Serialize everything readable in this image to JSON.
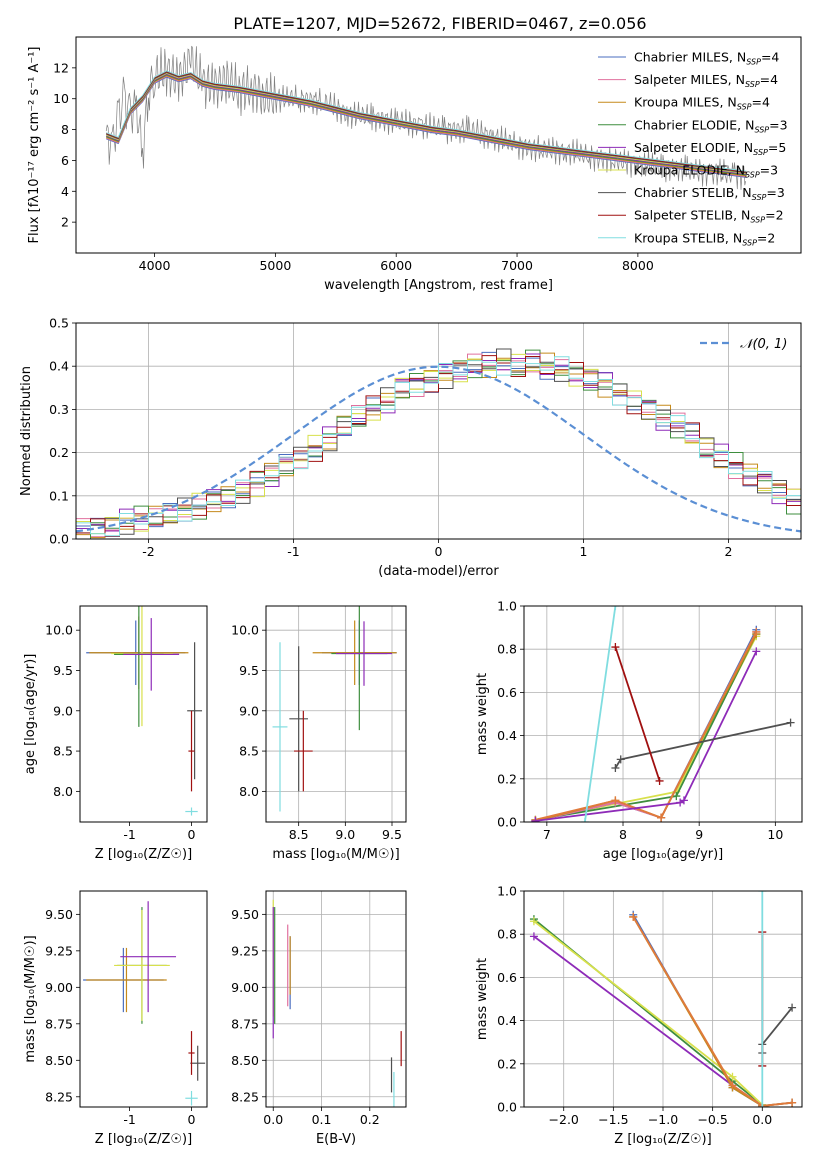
{
  "figure": {
    "title": "PLATE=1207, MJD=52672, FIBERID=0467, z=0.056"
  },
  "chart_data": [
    {
      "id": "spectrum",
      "type": "line",
      "xlabel": "wavelength [Angstrom, rest frame]",
      "ylabel": "Flux [fλ10⁻¹⁷ erg cm⁻² s⁻¹ A⁻¹]",
      "xlim": [
        3350,
        9350
      ],
      "ylim": [
        0,
        14
      ],
      "xticks": [
        4000,
        5000,
        6000,
        7000,
        8000
      ],
      "yticks": [
        2,
        4,
        6,
        8,
        10,
        12
      ],
      "grid": false,
      "legend_position": "top-right",
      "data_color": "#808080",
      "data_x": [
        3600,
        3650,
        3700,
        3750,
        3800,
        3850,
        3900,
        3950,
        4000,
        4100,
        4200,
        4300,
        4400,
        4500,
        4600,
        4700,
        4800,
        4900,
        5000,
        5200,
        5400,
        5600,
        5800,
        6000,
        6200,
        6400,
        6600,
        6800,
        7000,
        7200,
        7400,
        7600,
        7800,
        8000,
        8200,
        8400,
        8600,
        8800,
        8900
      ],
      "data_y": [
        7.5,
        7.0,
        8.8,
        10.0,
        9.0,
        9.5,
        6.5,
        10.5,
        11.5,
        11.8,
        11.2,
        12.5,
        11.0,
        10.8,
        11.2,
        10.5,
        10.7,
        10.2,
        10.0,
        10.0,
        9.8,
        9.0,
        8.8,
        8.5,
        8.3,
        8.0,
        8.0,
        7.5,
        7.0,
        6.7,
        6.6,
        6.3,
        6.0,
        5.8,
        5.6,
        5.4,
        5.2,
        5.1,
        5.0
      ],
      "model_x": [
        3600,
        3700,
        3800,
        3900,
        4000,
        4100,
        4200,
        4300,
        4400,
        4500,
        4700,
        4900,
        5100,
        5300,
        5500,
        5700,
        5900,
        6100,
        6300,
        6500,
        6700,
        6900,
        7100,
        7300,
        7500,
        7700,
        7900,
        8100,
        8300,
        8500,
        8700,
        8900
      ],
      "model_y": [
        7.6,
        7.3,
        9.2,
        10.0,
        11.2,
        11.6,
        11.3,
        11.5,
        11.0,
        10.8,
        10.6,
        10.3,
        10.0,
        9.7,
        9.3,
        8.9,
        8.6,
        8.3,
        8.0,
        7.8,
        7.5,
        7.2,
        6.9,
        6.7,
        6.5,
        6.3,
        6.1,
        5.9,
        5.7,
        5.5,
        5.3,
        5.1
      ],
      "series": [
        {
          "name": "Chabrier MILES, N",
          "sub": "SSP",
          "suffix": "=4",
          "color": "#4a6ebf"
        },
        {
          "name": "Salpeter MILES, N",
          "sub": "SSP",
          "suffix": "=4",
          "color": "#e1709e"
        },
        {
          "name": "Kroupa MILES, N",
          "sub": "SSP",
          "suffix": "=4",
          "color": "#c58a1c"
        },
        {
          "name": "Chabrier ELODIE, N",
          "sub": "SSP",
          "suffix": "=3",
          "color": "#3e8e3e"
        },
        {
          "name": "Salpeter ELODIE, N",
          "sub": "SSP",
          "suffix": "=5",
          "color": "#8e2bb8"
        },
        {
          "name": "Kroupa ELODIE, N",
          "sub": "SSP",
          "suffix": "=3",
          "color": "#d8e04c"
        },
        {
          "name": "Chabrier STELIB, N",
          "sub": "SSP",
          "suffix": "=3",
          "color": "#505050"
        },
        {
          "name": "Salpeter STELIB, N",
          "sub": "SSP",
          "suffix": "=2",
          "color": "#a01010"
        },
        {
          "name": "Kroupa STELIB, N",
          "sub": "SSP",
          "suffix": "=2",
          "color": "#80dde0"
        }
      ]
    },
    {
      "id": "residuals",
      "type": "line",
      "xlabel": "(data-model)/error",
      "ylabel": "Normed distribution",
      "xlim": [
        -2.5,
        2.5
      ],
      "ylim": [
        0,
        0.5
      ],
      "xticks": [
        -2,
        -1,
        0,
        1,
        2
      ],
      "yticks": [
        0.0,
        0.1,
        0.2,
        0.3,
        0.4,
        0.5
      ],
      "grid": true,
      "legend_position": "top-right",
      "gaussian_label": "𝒩(0, 1)",
      "gaussian_color": "#5b8fd4",
      "hist_bin_width": 0.1,
      "hist_x_start": -2.5,
      "hist_base": [
        0.02,
        0.025,
        0.03,
        0.04,
        0.045,
        0.05,
        0.055,
        0.065,
        0.075,
        0.09,
        0.1,
        0.11,
        0.13,
        0.15,
        0.17,
        0.19,
        0.21,
        0.23,
        0.26,
        0.28,
        0.3,
        0.32,
        0.35,
        0.36,
        0.37,
        0.38,
        0.39,
        0.4,
        0.4,
        0.41,
        0.4,
        0.41,
        0.4,
        0.39,
        0.38,
        0.37,
        0.36,
        0.34,
        0.32,
        0.3,
        0.28,
        0.26,
        0.24,
        0.21,
        0.19,
        0.17,
        0.15,
        0.13,
        0.11,
        0.09,
        0.08
      ]
    },
    {
      "id": "age-vs-Z",
      "type": "scatter",
      "xlabel": "Z [log₁₀(Z/Z☉)]",
      "ylabel": "age  [log₁₀(age/yr)]",
      "xlim": [
        -1.8,
        0.25
      ],
      "ylim": [
        7.62,
        10.3
      ],
      "xticks": [
        -1,
        0
      ],
      "yticks": [
        8.0,
        8.5,
        9.0,
        9.5,
        10.0
      ],
      "grid": false,
      "points": [
        {
          "x": -0.9,
          "y": 9.72,
          "xerr": 0.8,
          "yerr": 0.4,
          "color": "#4a6ebf"
        },
        {
          "x": -0.85,
          "y": 9.72,
          "xerr": 0.8,
          "yerr": 0.45,
          "color": "#c58a1c"
        },
        {
          "x": -0.8,
          "y": 9.71,
          "xerr": 0.5,
          "yerr": 0.9,
          "color": "#d8e04c"
        },
        {
          "x": -0.85,
          "y": 9.7,
          "xerr": 0.4,
          "yerr": 0.9,
          "color": "#3e8e3e"
        },
        {
          "x": -0.65,
          "y": 9.7,
          "xerr": 0.45,
          "yerr": 0.45,
          "color": "#8e2bb8"
        },
        {
          "x": 0.05,
          "y": 9.0,
          "xerr": 0.12,
          "yerr": 0.85,
          "color": "#505050"
        },
        {
          "x": 0.0,
          "y": 8.5,
          "xerr": 0.05,
          "yerr": 0.5,
          "color": "#a01010"
        },
        {
          "x": 0.0,
          "y": 7.75,
          "xerr": 0.1,
          "yerr": 0.05,
          "color": "#80dde0"
        }
      ]
    },
    {
      "id": "age-vs-mass",
      "type": "scatter",
      "xlabel": "mass [log₁₀(M/M☉)]",
      "ylabel": "",
      "xlim": [
        8.15,
        9.65
      ],
      "ylim": [
        7.62,
        10.3
      ],
      "xticks": [
        8.5,
        9.0,
        9.5
      ],
      "yticks": [
        8.0,
        8.5,
        9.0,
        9.5,
        10.0
      ],
      "grid": true,
      "points": [
        {
          "x": 9.15,
          "y": 9.72,
          "xerr": 0.4,
          "yerr": 0.4,
          "color": "#4a6ebf"
        },
        {
          "x": 9.1,
          "y": 9.72,
          "xerr": 0.45,
          "yerr": 0.4,
          "color": "#c58a1c"
        },
        {
          "x": 9.15,
          "y": 9.71,
          "xerr": 0.3,
          "yerr": 0.95,
          "color": "#3e8e3e"
        },
        {
          "x": 9.2,
          "y": 9.71,
          "xerr": 0.3,
          "yerr": 0.4,
          "color": "#8e2bb8"
        },
        {
          "x": 8.5,
          "y": 8.9,
          "xerr": 0.1,
          "yerr": 0.9,
          "color": "#505050"
        },
        {
          "x": 8.55,
          "y": 8.5,
          "xerr": 0.1,
          "yerr": 0.5,
          "color": "#a01010"
        },
        {
          "x": 8.3,
          "y": 8.8,
          "xerr": 0.08,
          "yerr": 1.05,
          "color": "#80dde0"
        }
      ]
    },
    {
      "id": "weight-vs-age",
      "type": "line",
      "xlabel": "age  [log₁₀(age/yr)]",
      "ylabel": "mass weight",
      "xlim": [
        6.7,
        10.35
      ],
      "ylim": [
        0,
        1
      ],
      "xticks": [
        7,
        8,
        9,
        10
      ],
      "yticks": [
        0.0,
        0.2,
        0.4,
        0.6,
        0.8,
        1.0
      ],
      "grid": true,
      "series": [
        {
          "color": "#d8e04c",
          "x": [
            6.85,
            8.7,
            9.75
          ],
          "y": [
            0.01,
            0.14,
            0.86
          ]
        },
        {
          "color": "#3e8e3e",
          "x": [
            6.85,
            8.7,
            9.75
          ],
          "y": [
            0.01,
            0.12,
            0.87
          ]
        },
        {
          "color": "#4a6ebf",
          "x": [
            6.85,
            7.9,
            8.5,
            9.75
          ],
          "y": [
            0.005,
            0.09,
            0.02,
            0.89
          ]
        },
        {
          "color": "#e1709e",
          "x": [
            6.85,
            7.9,
            8.5,
            9.75
          ],
          "y": [
            0.005,
            0.09,
            0.02,
            0.88
          ]
        },
        {
          "color": "#c58a1c",
          "x": [
            6.85,
            7.9,
            8.5,
            9.75
          ],
          "y": [
            0.005,
            0.1,
            0.02,
            0.87
          ]
        },
        {
          "color": "#e07a3c",
          "x": [
            6.85,
            7.9,
            8.5,
            9.75
          ],
          "y": [
            0.01,
            0.1,
            0.02,
            0.88
          ]
        },
        {
          "color": "#8e2bb8",
          "x": [
            6.85,
            8.75,
            8.8,
            9.75
          ],
          "y": [
            0.005,
            0.09,
            0.1,
            0.79
          ]
        },
        {
          "color": "#505050",
          "x": [
            7.9,
            7.97,
            10.2
          ],
          "y": [
            0.25,
            0.29,
            0.46
          ]
        },
        {
          "color": "#a01010",
          "x": [
            7.9,
            8.48
          ],
          "y": [
            0.81,
            0.19
          ]
        },
        {
          "color": "#80dde0",
          "x": [
            7.5,
            7.9
          ],
          "y": [
            0.0,
            1.0
          ]
        }
      ]
    },
    {
      "id": "mass-vs-Z",
      "type": "scatter",
      "xlabel": "Z [log₁₀(Z/Z☉)]",
      "ylabel": "mass [log₁₀(M/M☉)]",
      "xlim": [
        -1.8,
        0.25
      ],
      "ylim": [
        8.18,
        9.66
      ],
      "xticks": [
        -1,
        0
      ],
      "yticks": [
        8.25,
        8.5,
        8.75,
        9.0,
        9.25,
        9.5
      ],
      "grid": false,
      "points": [
        {
          "x": -1.1,
          "y": 9.05,
          "xerr": 0.65,
          "yerr": 0.22,
          "color": "#4a6ebf"
        },
        {
          "x": -1.05,
          "y": 9.05,
          "xerr": 0.65,
          "yerr": 0.22,
          "color": "#c58a1c"
        },
        {
          "x": -0.8,
          "y": 9.15,
          "xerr": 0.4,
          "yerr": 0.4,
          "color": "#3e8e3e"
        },
        {
          "x": -0.8,
          "y": 9.15,
          "xerr": 0.45,
          "yerr": 0.38,
          "color": "#d8e04c"
        },
        {
          "x": -0.7,
          "y": 9.21,
          "xerr": 0.45,
          "yerr": 0.38,
          "color": "#8e2bb8"
        },
        {
          "x": 0.1,
          "y": 8.48,
          "xerr": 0.12,
          "yerr": 0.12,
          "color": "#505050"
        },
        {
          "x": 0.0,
          "y": 8.55,
          "xerr": 0.05,
          "yerr": 0.15,
          "color": "#a01010"
        },
        {
          "x": 0.0,
          "y": 8.24,
          "xerr": 0.1,
          "yerr": 0.05,
          "color": "#80dde0"
        }
      ]
    },
    {
      "id": "mass-vs-EBV",
      "type": "scatter",
      "xlabel": "E(B-V)",
      "ylabel": "",
      "xlim": [
        -0.015,
        0.275
      ],
      "ylim": [
        8.18,
        9.66
      ],
      "xticks": [
        0.0,
        0.1,
        0.2
      ],
      "yticks": [
        8.25,
        8.5,
        8.75,
        9.0,
        9.25,
        9.5
      ],
      "grid": true,
      "points": [
        {
          "x": 0.0,
          "y": 9.2,
          "xerr": 0.0,
          "yerr": 0.4,
          "color": "#d8e04c"
        },
        {
          "x": 0.0,
          "y": 9.1,
          "xerr": 0.0,
          "yerr": 0.45,
          "color": "#8e2bb8"
        },
        {
          "x": 0.003,
          "y": 9.15,
          "xerr": 0.0,
          "yerr": 0.4,
          "color": "#3e8e3e"
        },
        {
          "x": 0.03,
          "y": 9.15,
          "xerr": 0.0,
          "yerr": 0.28,
          "color": "#e1709e"
        },
        {
          "x": 0.035,
          "y": 9.1,
          "xerr": 0.0,
          "yerr": 0.25,
          "color": "#4a6ebf"
        },
        {
          "x": 0.035,
          "y": 9.15,
          "xerr": 0.0,
          "yerr": 0.2,
          "color": "#c58a1c"
        },
        {
          "x": 0.245,
          "y": 8.4,
          "xerr": 0.0,
          "yerr": 0.12,
          "color": "#505050"
        },
        {
          "x": 0.265,
          "y": 8.58,
          "xerr": 0.0,
          "yerr": 0.12,
          "color": "#a01010"
        },
        {
          "x": 0.25,
          "y": 8.3,
          "xerr": 0.0,
          "yerr": 0.12,
          "color": "#80dde0"
        }
      ]
    },
    {
      "id": "weight-vs-Z",
      "type": "line",
      "xlabel": "Z [log₁₀(Z/Z☉)]",
      "ylabel": "mass weight",
      "xlim": [
        -2.4,
        0.4
      ],
      "ylim": [
        0,
        1
      ],
      "xticks": [
        -2.0,
        -1.5,
        -1.0,
        -0.5,
        0.0
      ],
      "yticks": [
        0.0,
        0.2,
        0.4,
        0.6,
        0.8,
        1.0
      ],
      "grid": true,
      "series": [
        {
          "color": "#3e8e3e",
          "x": [
            -2.3,
            -0.3,
            0.0
          ],
          "y": [
            0.87,
            0.12,
            0.01
          ]
        },
        {
          "color": "#d8e04c",
          "x": [
            -2.3,
            -0.3,
            0.0
          ],
          "y": [
            0.86,
            0.14,
            0.01
          ]
        },
        {
          "color": "#8e2bb8",
          "x": [
            -2.3,
            -0.3,
            0.0
          ],
          "y": [
            0.79,
            0.1,
            0.005
          ]
        },
        {
          "color": "#4a6ebf",
          "x": [
            -1.3,
            -0.3,
            0.0,
            0.3
          ],
          "y": [
            0.89,
            0.09,
            0.005,
            0.02
          ]
        },
        {
          "color": "#c58a1c",
          "x": [
            -1.3,
            -0.3,
            0.0,
            0.3
          ],
          "y": [
            0.88,
            0.09,
            0.005,
            0.02
          ]
        },
        {
          "color": "#e07a3c",
          "x": [
            -1.3,
            -0.3,
            0.0,
            0.3
          ],
          "y": [
            0.88,
            0.1,
            0.005,
            0.02
          ]
        },
        {
          "color": "#505050",
          "x": [
            0.0,
            0.0,
            0.3
          ],
          "y": [
            0.25,
            0.29,
            0.46
          ]
        },
        {
          "color": "#a01010",
          "x": [
            0.0,
            0.0
          ],
          "y": [
            0.81,
            0.19
          ]
        },
        {
          "color": "#80dde0",
          "x": [
            0.0,
            0.0
          ],
          "y": [
            0.0,
            1.0
          ]
        }
      ]
    }
  ]
}
